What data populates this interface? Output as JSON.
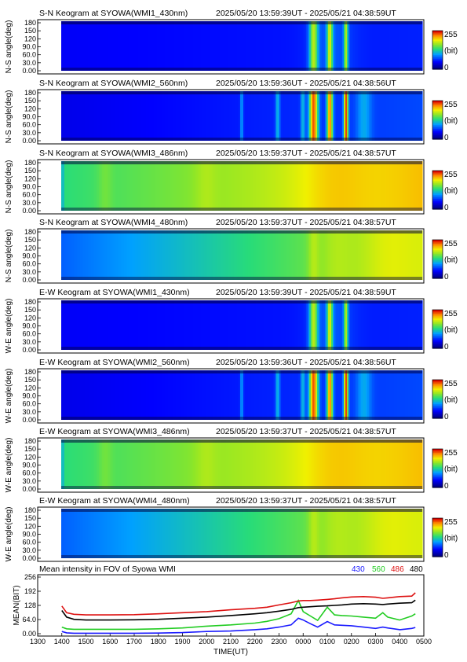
{
  "keograms": [
    {
      "title": "S-N Keogram at SYOWA(WMI1_430nm)",
      "time_range": "2025/05/20 13:59:39UT - 2025/05/21 04:38:59UT",
      "ylabel": "N-S angle(deg)",
      "intensity": "dim-430"
    },
    {
      "title": "S-N Keogram at SYOWA(WMI2_560nm)",
      "time_range": "2025/05/20 13:59:36UT - 2025/05/21 04:38:56UT",
      "ylabel": "N-S angle(deg)",
      "intensity": "bright-560"
    },
    {
      "title": "S-N Keogram at SYOWA(WMI3_486nm)",
      "time_range": "2025/05/20 13:59:37UT - 2025/05/21 04:38:57UT",
      "ylabel": "N-S angle(deg)",
      "intensity": "bright-486"
    },
    {
      "title": "S-N Keogram at SYOWA(WMI4_480nm)",
      "time_range": "2025/05/20 13:59:37UT - 2025/05/21 04:38:57UT",
      "ylabel": "N-S angle(deg)",
      "intensity": "medium-480"
    },
    {
      "title": "E-W Keogram at SYOWA(WMI1_430nm)",
      "time_range": "2025/05/20 13:59:39UT - 2025/05/21 04:38:59UT",
      "ylabel": "W-E angle(deg)",
      "intensity": "dim-430"
    },
    {
      "title": "E-W Keogram at SYOWA(WMI2_560nm)",
      "time_range": "2025/05/20 13:59:36UT - 2025/05/21 04:38:56UT",
      "ylabel": "W-E angle(deg)",
      "intensity": "bright-560"
    },
    {
      "title": "E-W Keogram at SYOWA(WMI3_486nm)",
      "time_range": "2025/05/20 13:59:37UT - 2025/05/21 04:38:57UT",
      "ylabel": "W-E angle(deg)",
      "intensity": "bright-486"
    },
    {
      "title": "E-W Keogram at SYOWA(WMI4_480nm)",
      "time_range": "2025/05/20 13:59:37UT - 2025/05/21 04:38:57UT",
      "ylabel": "W-E angle(deg)",
      "intensity": "medium-480"
    }
  ],
  "angle_ticks": [
    "180",
    "150",
    "120",
    "90.0",
    "60.0",
    "30.0",
    "0.00"
  ],
  "colorbar": {
    "max_label": "255",
    "unit_label": "(bit)",
    "min_label": "0"
  },
  "mean_panel": {
    "title": "Mean intensity in FOV of Syowa WMI",
    "ylabel": "MEAN(BIT)",
    "xlabel": "TIME(UT)",
    "legend": [
      {
        "label": "430",
        "color": "#1a1aff"
      },
      {
        "label": "560",
        "color": "#22cc22"
      },
      {
        "label": "486",
        "color": "#dd1111"
      },
      {
        "label": "480",
        "color": "#000000"
      }
    ],
    "yticks": [
      "256",
      "192",
      "128",
      "64.0",
      "0.00"
    ],
    "xticks": [
      "1300",
      "1400",
      "1500",
      "1600",
      "1700",
      "1800",
      "1900",
      "2000",
      "2100",
      "2200",
      "2300",
      "0000",
      "0100",
      "0200",
      "0300",
      "0400",
      "0500"
    ]
  },
  "chart_data": {
    "type": "line",
    "title": "Mean intensity in FOV of Syowa WMI",
    "xlabel": "TIME(UT)",
    "ylabel": "MEAN(BIT)",
    "xlim": [
      13,
      29
    ],
    "ylim": [
      0,
      256
    ],
    "x": [
      14.0,
      14.2,
      14.5,
      15,
      16,
      17,
      18,
      19,
      20,
      21,
      22,
      22.5,
      23,
      23.5,
      23.8,
      24,
      24.3,
      24.6,
      25,
      25.3,
      25.6,
      26,
      26.5,
      27,
      27.3,
      27.5,
      28,
      28.5,
      28.65
    ],
    "series": [
      {
        "name": "430",
        "color": "#1a1aff",
        "values": [
          10,
          4,
          2,
          2,
          2,
          2,
          3,
          5,
          10,
          12,
          18,
          22,
          30,
          40,
          70,
          62,
          45,
          30,
          55,
          40,
          38,
          36,
          30,
          24,
          30,
          26,
          18,
          24,
          28
        ]
      },
      {
        "name": "560",
        "color": "#22cc22",
        "values": [
          30,
          22,
          20,
          20,
          20,
          20,
          22,
          26,
          34,
          40,
          48,
          56,
          68,
          90,
          150,
          100,
          80,
          60,
          120,
          85,
          82,
          80,
          75,
          70,
          95,
          75,
          62,
          80,
          90
        ]
      },
      {
        "name": "486",
        "color": "#dd1111",
        "values": [
          125,
          95,
          88,
          85,
          85,
          86,
          90,
          95,
          100,
          108,
          115,
          120,
          130,
          140,
          148,
          150,
          150,
          152,
          155,
          158,
          162,
          166,
          168,
          165,
          160,
          162,
          168,
          170,
          185
        ]
      },
      {
        "name": "480",
        "color": "#000000",
        "values": [
          105,
          75,
          65,
          62,
          62,
          63,
          65,
          70,
          75,
          82,
          90,
          95,
          102,
          110,
          118,
          120,
          122,
          124,
          126,
          128,
          130,
          134,
          136,
          134,
          132,
          134,
          138,
          140,
          152
        ]
      }
    ]
  }
}
